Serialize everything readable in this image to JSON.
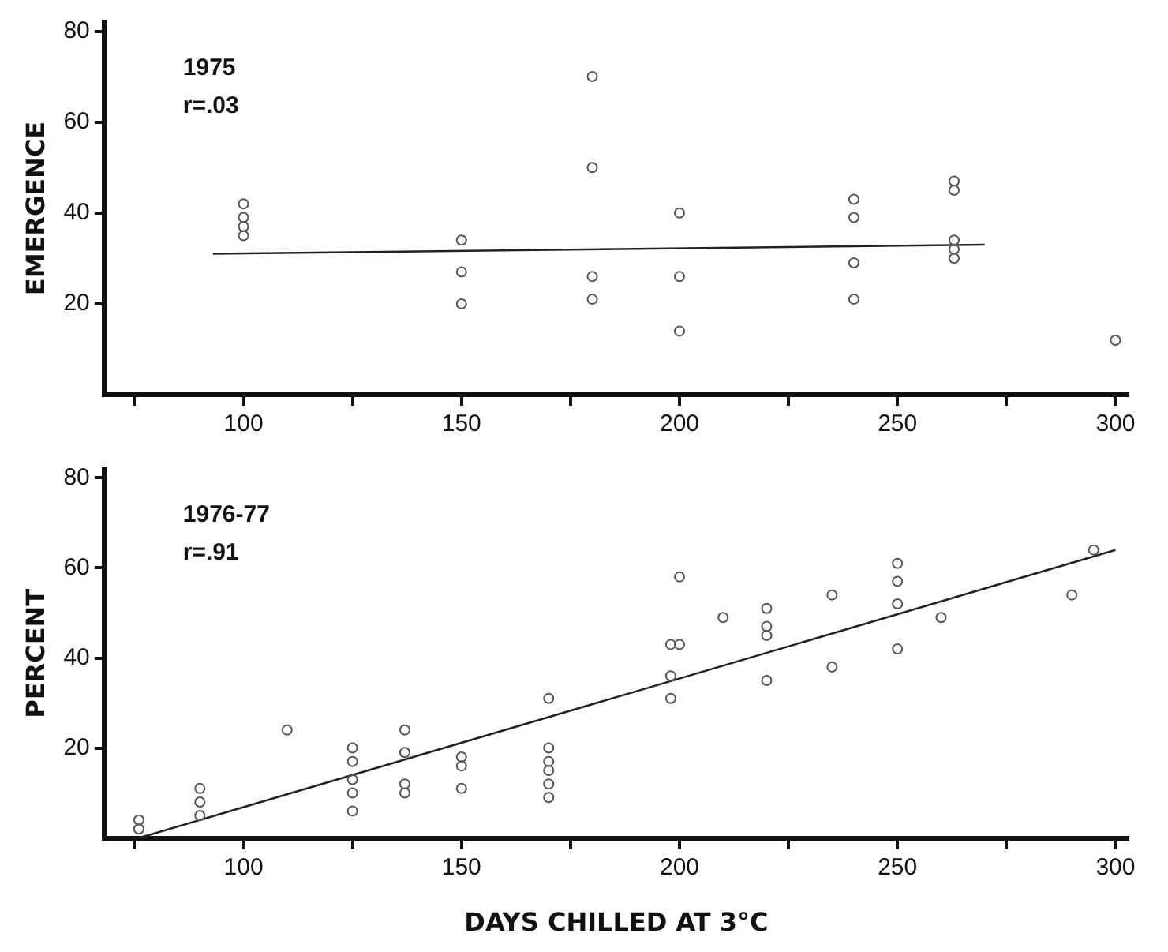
{
  "chart_data": [
    {
      "type": "scatter",
      "ylabel": "EMERGENCE",
      "annotations": [
        "1975",
        "r=.03"
      ],
      "xlim": [
        68,
        303
      ],
      "xticks": [
        {
          "value": 75,
          "label": null
        },
        100,
        {
          "value": 125,
          "label": null
        },
        150,
        {
          "value": 175,
          "label": null
        },
        200,
        {
          "value": 225,
          "label": null
        },
        250,
        {
          "value": 275,
          "label": null
        },
        300
      ],
      "ylim": [
        0,
        82
      ],
      "yticks": [
        20,
        40,
        60,
        80
      ],
      "grid": false,
      "legend": false,
      "marker": "circle",
      "series": [
        {
          "color": "#555555",
          "x": [
            100,
            100,
            100,
            100,
            150,
            150,
            150,
            180,
            180,
            180,
            180,
            200,
            200,
            200,
            240,
            240,
            240,
            240,
            263,
            263,
            263,
            263,
            263,
            300
          ],
          "values": [
            42,
            39,
            37,
            35,
            34,
            27,
            20,
            70,
            50,
            26,
            21,
            40,
            26,
            14,
            43,
            39,
            29,
            21,
            47,
            45,
            34,
            32,
            30,
            12
          ]
        },
        {
          "type": "line",
          "marker": "none",
          "color": "#222222",
          "x": [
            93,
            270
          ],
          "values": [
            31,
            33
          ]
        }
      ]
    },
    {
      "type": "scatter",
      "ylabel": "PERCENT",
      "xlabel": "DAYS CHILLED AT 3°C",
      "annotations": [
        "1976-77",
        "r=.91"
      ],
      "xlim": [
        68,
        303
      ],
      "xticks": [
        {
          "value": 75,
          "label": null
        },
        100,
        {
          "value": 125,
          "label": null
        },
        150,
        {
          "value": 175,
          "label": null
        },
        200,
        {
          "value": 225,
          "label": null
        },
        250,
        {
          "value": 275,
          "label": null
        },
        300
      ],
      "ylim": [
        0,
        82
      ],
      "yticks": [
        20,
        40,
        60,
        80
      ],
      "grid": false,
      "legend": false,
      "marker": "circle",
      "series": [
        {
          "color": "#555555",
          "x": [
            76,
            76,
            90,
            90,
            90,
            110,
            125,
            125,
            125,
            125,
            125,
            137,
            137,
            137,
            137,
            150,
            150,
            150,
            170,
            170,
            170,
            170,
            170,
            170,
            198,
            198,
            198,
            200,
            200,
            210,
            220,
            220,
            220,
            220,
            235,
            235,
            250,
            250,
            250,
            250,
            260,
            290,
            295
          ],
          "values": [
            2,
            4,
            11,
            8,
            5,
            24,
            20,
            17,
            13,
            10,
            6,
            24,
            19,
            12,
            10,
            18,
            16,
            11,
            31,
            20,
            17,
            15,
            12,
            9,
            43,
            36,
            31,
            58,
            43,
            49,
            51,
            47,
            45,
            35,
            38,
            54,
            61,
            57,
            52,
            42,
            49,
            54,
            64
          ]
        },
        {
          "type": "line",
          "marker": "none",
          "color": "#222222",
          "x": [
            76,
            300
          ],
          "values": [
            0,
            64
          ]
        }
      ]
    }
  ]
}
